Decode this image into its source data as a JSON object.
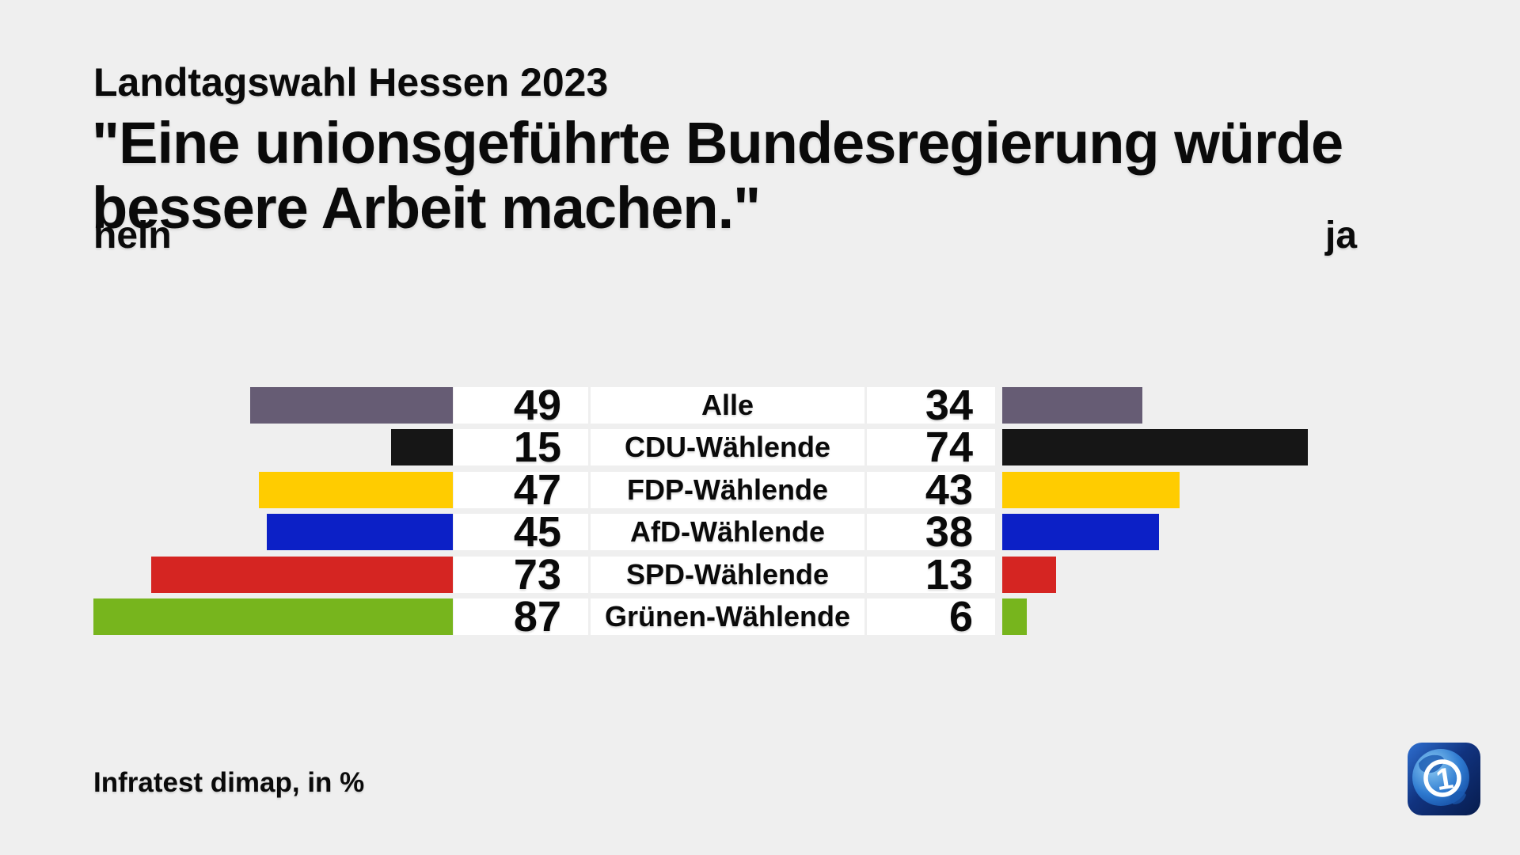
{
  "header": {
    "kicker": "Landtagswahl Hessen 2023",
    "title_line1": "\"Eine unionsgeführte Bundesregierung würde",
    "title_line2": "bessere Arbeit machen.\"",
    "left_axis_label": "nein",
    "right_axis_label": "ja"
  },
  "chart_data": {
    "type": "bar",
    "variant": "diverging-horizontal",
    "title": "\"Eine unionsgeführte Bundesregierung würde bessere Arbeit machen.\"",
    "unit": "%",
    "xlim": [
      0,
      100
    ],
    "legend_left": "nein",
    "legend_right": "ja",
    "categories": [
      "Alle",
      "CDU-Wählende",
      "FDP-Wählende",
      "AfD-Wählende",
      "SPD-Wählende",
      "Grünen-Wählende"
    ],
    "series": [
      {
        "name": "nein",
        "side": "left",
        "values": [
          49,
          15,
          47,
          45,
          73,
          87
        ]
      },
      {
        "name": "ja",
        "side": "right",
        "values": [
          34,
          74,
          43,
          38,
          13,
          6
        ]
      }
    ],
    "row_colors": [
      "#665c74",
      "#161616",
      "#ffcc00",
      "#0c20c6",
      "#d52522",
      "#77b51d"
    ]
  },
  "footer": {
    "source": "Infratest dimap, in %"
  },
  "logo": {
    "name": "ARD Tagesschau",
    "glyph": "1",
    "bg_dark": "#071c4d",
    "bg_mid": "#11337f",
    "globe_light": "#8ecdf5",
    "globe_mid": "#2e7ad0",
    "globe_dark": "#0d3f95"
  },
  "layout_colors": {
    "background": "#efefef",
    "cell_background": "#ffffff",
    "text": "#0a0a0a"
  }
}
